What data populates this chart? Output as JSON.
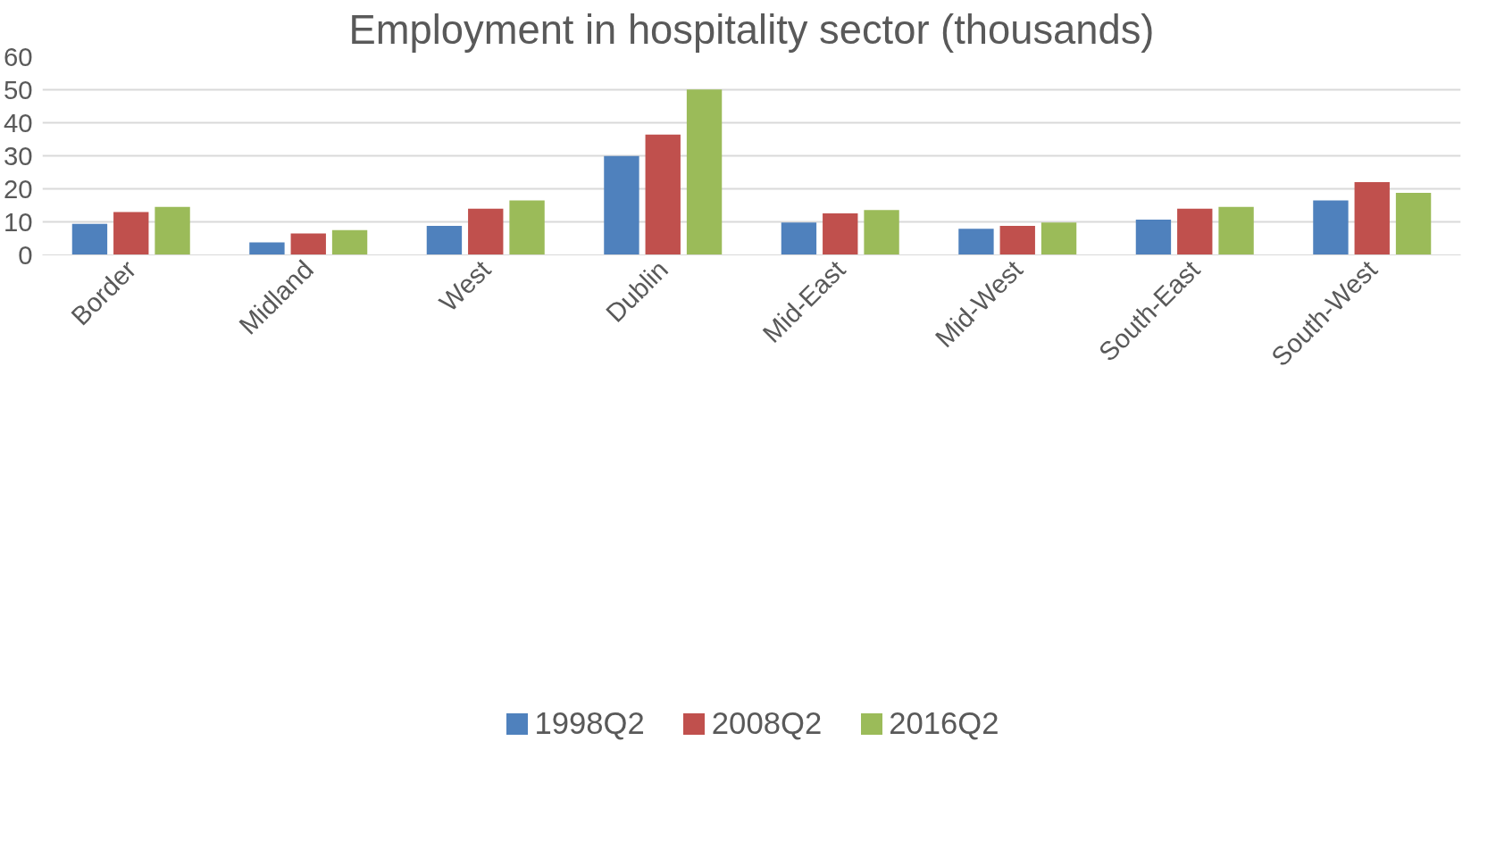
{
  "chart_data": {
    "type": "bar",
    "title": "Employment in hospitality sector (thousands)",
    "categories": [
      "Border",
      "Midland",
      "West",
      "Dublin",
      "Mid-East",
      "Mid-West",
      "South-East",
      "South-West"
    ],
    "series": [
      {
        "name": "1998Q2",
        "color": "#4f81bd",
        "values": [
          9.4,
          3.8,
          8.8,
          29.9,
          9.8,
          7.9,
          10.7,
          16.5
        ]
      },
      {
        "name": "2008Q2",
        "color": "#c0504d",
        "values": [
          13.0,
          6.5,
          14.0,
          36.4,
          12.6,
          8.8,
          14.0,
          22.0
        ]
      },
      {
        "name": "2016Q2",
        "color": "#9bbb59",
        "values": [
          14.5,
          7.5,
          16.5,
          50.1,
          13.6,
          9.8,
          14.5,
          18.8
        ]
      }
    ],
    "ylim": [
      0,
      60
    ],
    "yticks": [
      0,
      10,
      20,
      30,
      40,
      50,
      60
    ],
    "grid": "y",
    "legend": "bottom"
  }
}
